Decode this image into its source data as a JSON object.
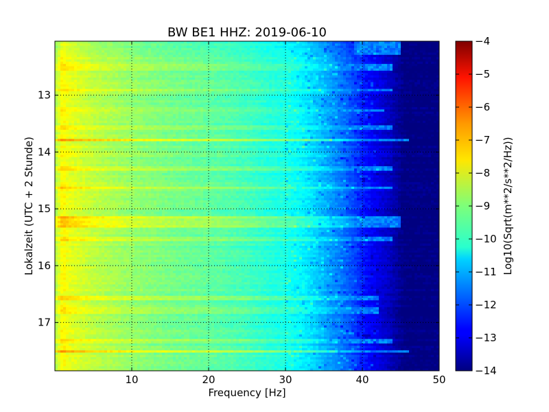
{
  "chart_data": {
    "type": "heatmap",
    "title": "BW BE1 HHZ: 2019-06-10",
    "xlabel": "Frequency [Hz]",
    "ylabel": "Lokalzeit (UTC + 2 Stunde)",
    "xlim": [
      0,
      50
    ],
    "ylim": [
      17.85,
      12.05
    ],
    "y_inverted": true,
    "x_ticks": [
      10,
      20,
      30,
      40,
      50
    ],
    "x_tick_labels": [
      "10",
      "20",
      "30",
      "40",
      "50"
    ],
    "y_ticks": [
      13,
      14,
      15,
      16,
      17
    ],
    "y_tick_labels": [
      "13",
      "14",
      "15",
      "16",
      "17"
    ],
    "grid": true,
    "colormap": "jet",
    "colorbar": {
      "label": "Log10(Sqrt(m**2/s**2/Hz))",
      "range": [
        -14,
        -4
      ],
      "ticks": [
        -4,
        -5,
        -6,
        -7,
        -8,
        -9,
        -10,
        -11,
        -12,
        -13,
        -14
      ],
      "tick_labels": [
        "−4",
        "−5",
        "−6",
        "−7",
        "−8",
        "−9",
        "−10",
        "−11",
        "−12",
        "−13",
        "−14"
      ]
    },
    "profile": {
      "frequency_hz": [
        0,
        1,
        2,
        5,
        10,
        15,
        20,
        25,
        28,
        30,
        32,
        33.5,
        35,
        37,
        39,
        40,
        42,
        44,
        45.5,
        50
      ],
      "level": [
        -8.6,
        -7.7,
        -8.0,
        -8.4,
        -8.8,
        -9.1,
        -9.3,
        -9.6,
        -9.9,
        -10.0,
        -10.3,
        -10.6,
        -11.0,
        -11.5,
        -12.1,
        -12.5,
        -13.0,
        -13.5,
        -14.0,
        -14.0
      ]
    },
    "bands": [
      {
        "start": 12.05,
        "end": 12.3,
        "offset": -0.2,
        "fmax": 45
      },
      {
        "start": 12.45,
        "end": 12.55,
        "offset": 0.4,
        "fmax": 44
      },
      {
        "start": 12.88,
        "end": 12.95,
        "offset": 0.5,
        "fmax": 44
      },
      {
        "start": 13.25,
        "end": 13.3,
        "offset": 0.4,
        "fmax": 43
      },
      {
        "start": 13.55,
        "end": 13.62,
        "offset": 0.5,
        "fmax": 44
      },
      {
        "start": 13.76,
        "end": 13.82,
        "offset": 1.3,
        "fmax": 46
      },
      {
        "start": 14.25,
        "end": 14.32,
        "offset": 0.4,
        "fmax": 44
      },
      {
        "start": 14.6,
        "end": 14.66,
        "offset": 0.5,
        "fmax": 44
      },
      {
        "start": 15.15,
        "end": 15.35,
        "offset": 0.7,
        "fmax": 45
      },
      {
        "start": 15.5,
        "end": 15.55,
        "offset": 0.5,
        "fmax": 44
      },
      {
        "start": 16.55,
        "end": 16.62,
        "offset": 0.5,
        "fmax": 42
      },
      {
        "start": 16.75,
        "end": 16.85,
        "offset": 0.5,
        "fmax": 42
      },
      {
        "start": 17.3,
        "end": 17.38,
        "offset": 0.4,
        "fmax": 44
      },
      {
        "start": 17.5,
        "end": 17.54,
        "offset": 1.0,
        "fmax": 46
      }
    ]
  }
}
